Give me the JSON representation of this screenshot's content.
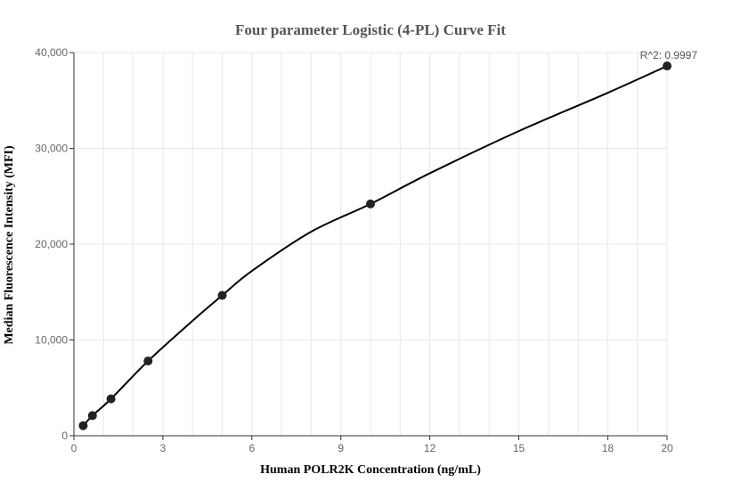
{
  "chart_data": {
    "type": "scatter",
    "title": "Four parameter Logistic (4-PL) Curve Fit",
    "xlabel": "Human POLR2K Concentration (ng/mL)",
    "ylabel": "Median Fluorescence Intensity (MFI)",
    "xlim": [
      0,
      20
    ],
    "ylim": [
      0,
      40000
    ],
    "x_ticks": [
      0,
      3,
      6,
      9,
      12,
      15,
      18,
      20
    ],
    "x_tick_labels": [
      "0",
      "3",
      "6",
      "9",
      "12",
      "15",
      "18",
      "20"
    ],
    "y_ticks": [
      0,
      10000,
      20000,
      30000,
      40000
    ],
    "y_tick_labels": [
      "0",
      "10,000",
      "20,000",
      "30,000",
      "40,000"
    ],
    "grid": true,
    "annotation": "R^2: 0.9997",
    "series": [
      {
        "points": [
          {
            "x": 0.3125,
            "y": 1050
          },
          {
            "x": 0.625,
            "y": 2100
          },
          {
            "x": 1.25,
            "y": 3850
          },
          {
            "x": 2.5,
            "y": 7800
          },
          {
            "x": 5,
            "y": 14650
          },
          {
            "x": 10,
            "y": 24200
          },
          {
            "x": 20,
            "y": 38600
          }
        ]
      }
    ],
    "fit_curve": {
      "x": [
        0.3125,
        0.625,
        1.25,
        2.5,
        4,
        5,
        6,
        8,
        10,
        12,
        15,
        18,
        20
      ],
      "y": [
        1050,
        2100,
        3850,
        7800,
        12000,
        14650,
        17200,
        21300,
        24200,
        27400,
        31800,
        35800,
        38600
      ]
    },
    "colors": {
      "points": "#222222",
      "line": "#000000",
      "grid": "#e8e8e8",
      "axis": "#333333"
    }
  }
}
